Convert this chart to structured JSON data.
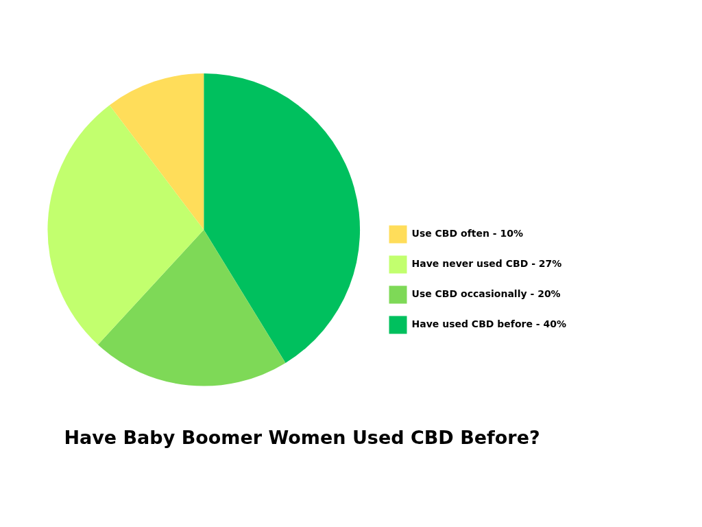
{
  "chart_data": {
    "type": "pie",
    "title": "Have Baby Boomer Women Used CBD Before?",
    "categories": [
      "Use CBD often -",
      "Have never used CBD -",
      "Use CBD occasionally -",
      "Have used CBD before -"
    ],
    "values": [
      10,
      27,
      20,
      40
    ],
    "value_labels": [
      "10%",
      "27%",
      "20%",
      "40%"
    ],
    "colors": [
      "#ffdd5a",
      "#c2ff6e",
      "#7ed957",
      "#00c05e"
    ],
    "legend": "right"
  }
}
